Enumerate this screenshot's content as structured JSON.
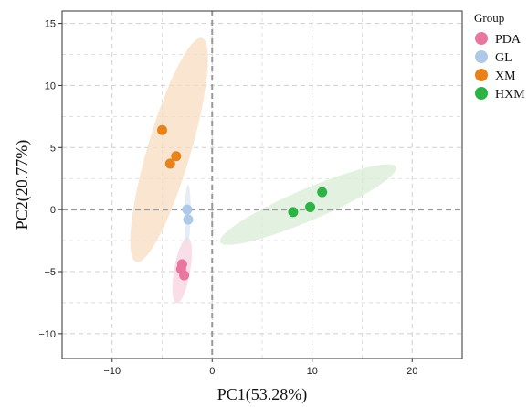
{
  "chart_data": {
    "type": "scatter",
    "xlabel": "PC1(53.28%)",
    "ylabel": "PC2(20.77%)",
    "xlim": [
      -15,
      25
    ],
    "ylim": [
      -12,
      16
    ],
    "xticks": [
      -10,
      0,
      10,
      20
    ],
    "yticks": [
      -10,
      -5,
      0,
      5,
      10,
      15
    ],
    "grid": true,
    "legend_title": "Group",
    "legend_position": "right",
    "series": [
      {
        "name": "PDA",
        "color": "#E8769F",
        "ellipse_color": "#F7D3DF",
        "points": [
          [
            -3.0,
            -4.4
          ],
          [
            -3.1,
            -4.8
          ],
          [
            -2.8,
            -5.3
          ]
        ]
      },
      {
        "name": "GL",
        "color": "#AEC8E8",
        "ellipse_color": "#DCE6F2",
        "points": [
          [
            -2.5,
            0.0
          ],
          [
            -2.4,
            -0.8
          ]
        ]
      },
      {
        "name": "XM",
        "color": "#E8821A",
        "ellipse_color": "#F8DEC0",
        "points": [
          [
            -5.0,
            6.4
          ],
          [
            -4.2,
            3.7
          ],
          [
            -3.6,
            4.3
          ]
        ]
      },
      {
        "name": "HXM",
        "color": "#2DB344",
        "ellipse_color": "#D9ECD6",
        "points": [
          [
            8.1,
            -0.2
          ],
          [
            9.8,
            0.2
          ],
          [
            11.0,
            1.4
          ]
        ]
      }
    ],
    "ellipses": [
      {
        "series": "PDA",
        "cx": -3.0,
        "cy": -4.9,
        "rx": 0.8,
        "ry": 2.7,
        "angle_deg": 78
      },
      {
        "series": "GL",
        "cx": -2.45,
        "cy": -0.4,
        "rx": 0.3,
        "ry": 2.4,
        "angle_deg": 89
      },
      {
        "series": "XM",
        "cx": -4.3,
        "cy": 4.8,
        "rx": 2.1,
        "ry": 9.6,
        "angle_deg": 70
      },
      {
        "series": "HXM",
        "cx": 9.6,
        "cy": 0.4,
        "rx": 1.3,
        "ry": 9.3,
        "angle_deg": 19
      }
    ]
  }
}
